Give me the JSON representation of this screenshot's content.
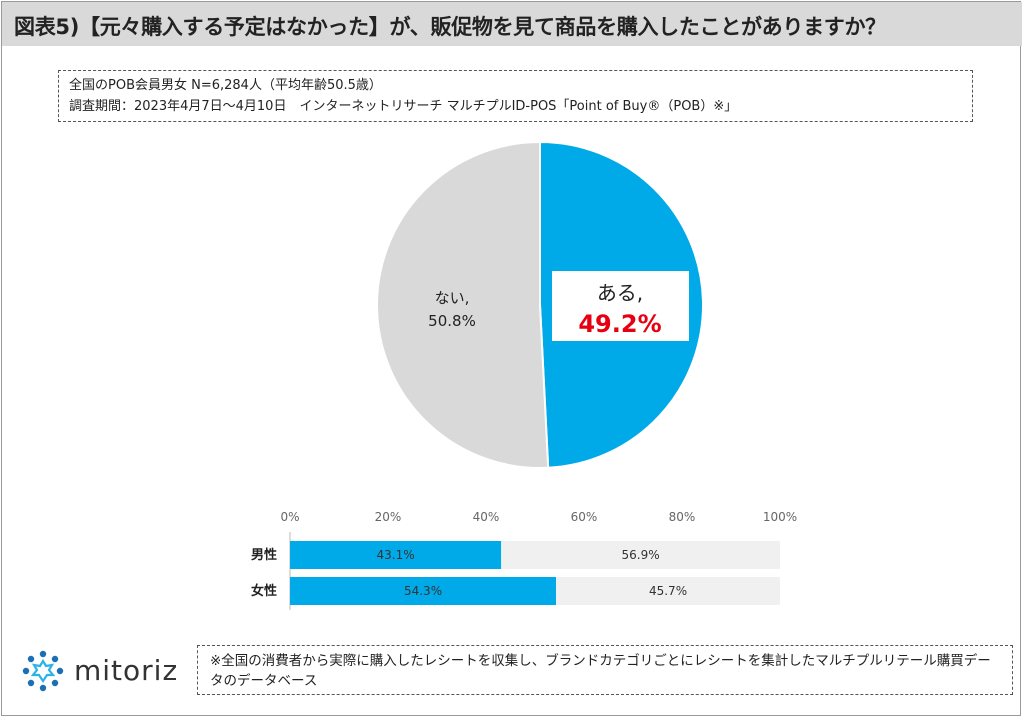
{
  "title": "図表5)【元々購入する予定はなかった】が、販促物を見て商品を購入したことがありますか？",
  "source": {
    "line1": "全国のPOB会員男女 N=6,284人（平均年齢50.5歳）",
    "line2": "調査期間：2023年4月7日〜4月10日　インターネットリサーチ マルチプルID-POS「Point of Buy®（POB）※」"
  },
  "note": "※全国の消費者から実際に購入したレシートを収集し、ブランドカテゴリごとにレシートを集計したマルチプルリテール購買データのデータベース",
  "logo": {
    "text": "mitoriz",
    "icon": "mitoriz-sun-icon"
  },
  "colors": {
    "yes": "#00a9e8",
    "no": "#d9d9d9",
    "no_bar": "#f0f0f0",
    "highlight": "#e60012"
  },
  "chart_data": [
    {
      "type": "pie",
      "categories": [
        "ある",
        "ない"
      ],
      "values": [
        49.2,
        50.8
      ],
      "labels": [
        {
          "name": "ある,",
          "value": "49.2%"
        },
        {
          "name": "ない,",
          "value": "50.8%"
        }
      ]
    },
    {
      "type": "bar",
      "orientation": "horizontal",
      "stacked": true,
      "categories": [
        "男性",
        "女性"
      ],
      "series": [
        {
          "values": [
            43.1,
            54.3
          ],
          "labels": [
            "43.1%",
            "54.3%"
          ]
        },
        {
          "values": [
            56.9,
            45.7
          ],
          "labels": [
            "56.9%",
            "45.7%"
          ]
        }
      ],
      "xlim": [
        0,
        100
      ],
      "xticks": [
        "0%",
        "20%",
        "40%",
        "60%",
        "80%",
        "100%"
      ]
    }
  ]
}
